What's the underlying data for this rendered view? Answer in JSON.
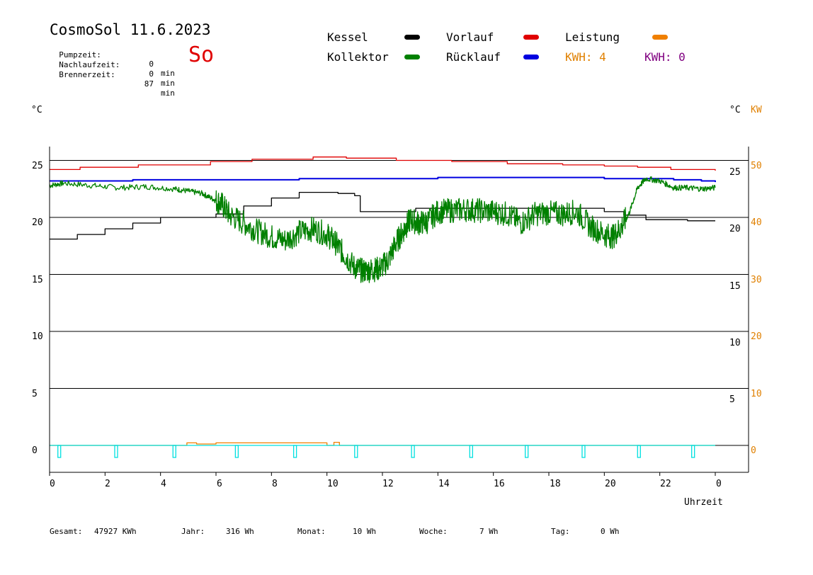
{
  "header": {
    "title": "CosmoSol 11.6.2023",
    "day": "So",
    "info": [
      {
        "label": "Pumpzeit:",
        "value": "0",
        "unit": "min"
      },
      {
        "label": "Nachlaufzeit:",
        "value": "0",
        "unit": "min"
      },
      {
        "label": "Brennerzeit:",
        "value": "87",
        "unit": "min"
      }
    ]
  },
  "legend": {
    "kessel": "Kessel",
    "kollektor": "Kollektor",
    "vorlauf": "Vorlauf",
    "ruecklauf": "Rücklauf",
    "leistung": "Leistung",
    "kwh_orange": "KWH: 4",
    "kwh_purple": "KWH: 0"
  },
  "colors": {
    "kessel": "#000000",
    "kollektor": "#008000",
    "vorlauf": "#e00000",
    "ruecklauf": "#0000e0",
    "leistung": "#f08000",
    "pumpe": "#00e0e0",
    "purple": "#800080",
    "kw_axis": "#e08000"
  },
  "axes": {
    "left_unit": "°C",
    "right_unit": "°C",
    "right_unit2": "KW",
    "xlabel": "Uhrzeit",
    "left_ticks": [
      "25",
      "20",
      "15",
      "10",
      "5",
      "0"
    ],
    "right_ticks_c": [
      "25",
      "20",
      "15",
      "10",
      "5"
    ],
    "right_ticks_kw": [
      "50",
      "40",
      "30",
      "20",
      "10",
      "0"
    ],
    "x_ticks": [
      "0",
      "2",
      "4",
      "6",
      "8",
      "10",
      "12",
      "14",
      "16",
      "18",
      "20",
      "22",
      "0"
    ]
  },
  "footer": {
    "gesamt_label": "Gesamt:",
    "gesamt_value": "47927 KWh",
    "jahr_label": "Jahr:",
    "jahr_value": "316 Wh",
    "monat_label": "Monat:",
    "monat_value": "10 Wh",
    "woche_label": "Woche:",
    "woche_value": "7 Wh",
    "tag_label": "Tag:",
    "tag_value": "0 Wh"
  },
  "chart_data": {
    "type": "line",
    "x_unit": "h",
    "xlim": [
      0,
      24
    ],
    "ylim_left": [
      -2,
      26
    ],
    "ylim_right_kw": [
      -4,
      52
    ],
    "grid_y": [
      25,
      20,
      15,
      10,
      5,
      0
    ],
    "series": [
      {
        "name": "Vorlauf",
        "key": "vorlauf",
        "x": [
          0,
          1.1,
          3.2,
          5.8,
          7.3,
          9.5,
          10.7,
          12.5,
          14.5,
          16.5,
          18.5,
          20.0,
          21.2,
          22.4,
          24.0
        ],
        "y": [
          24.2,
          24.4,
          24.6,
          24.9,
          25.1,
          25.3,
          25.2,
          25.0,
          24.9,
          24.7,
          24.6,
          24.5,
          24.4,
          24.2,
          24.1
        ]
      },
      {
        "name": "Rücklauf",
        "key": "ruecklauf",
        "x": [
          0,
          3.0,
          6.0,
          9.0,
          12.0,
          14.0,
          16.0,
          18.0,
          20.0,
          21.5,
          22.5,
          23.5,
          24.0
        ],
        "y": [
          23.2,
          23.3,
          23.3,
          23.4,
          23.4,
          23.5,
          23.5,
          23.5,
          23.4,
          23.4,
          23.3,
          23.2,
          23.1
        ]
      },
      {
        "name": "Kessel",
        "key": "kessel",
        "x": [
          0,
          1.0,
          2.0,
          3.0,
          4.0,
          5.0,
          5.5,
          6.0,
          7.0,
          8.0,
          9.0,
          10.0,
          10.4,
          11.0,
          11.2,
          12.7,
          13.2,
          14.0,
          17.0,
          20.0,
          20.7,
          21.5,
          22.2,
          23.0,
          24.0
        ],
        "y": [
          18.1,
          18.5,
          19.0,
          19.5,
          20.0,
          20.0,
          20.0,
          20.3,
          21.0,
          21.7,
          22.2,
          22.2,
          22.1,
          21.9,
          20.5,
          20.5,
          20.8,
          20.8,
          20.8,
          20.5,
          20.2,
          19.8,
          19.8,
          19.7,
          19.7
        ]
      },
      {
        "name": "Kollektor",
        "key": "kollektor",
        "x": [
          0,
          0.5,
          1.5,
          2.5,
          3.5,
          4.5,
          5.0,
          5.5,
          5.9,
          6.2,
          6.5,
          7.0,
          7.5,
          8.0,
          8.5,
          9.0,
          9.5,
          10.0,
          10.3,
          10.6,
          11.0,
          11.3,
          11.6,
          11.9,
          12.2,
          12.5,
          12.8,
          13.0,
          13.3,
          13.6,
          14.0,
          14.5,
          15.0,
          15.5,
          16.0,
          16.5,
          17.0,
          17.5,
          18.0,
          18.5,
          19.0,
          19.5,
          20.0,
          20.3,
          20.6,
          20.9,
          21.2,
          21.5,
          22.0,
          22.5,
          23.0,
          23.5,
          24.0
        ],
        "y": [
          22.8,
          23.0,
          22.8,
          22.6,
          22.7,
          22.5,
          22.3,
          22.1,
          21.6,
          21.2,
          20.2,
          19.5,
          18.8,
          18.3,
          18.0,
          18.7,
          19.0,
          18.5,
          17.8,
          16.8,
          15.6,
          15.3,
          15.4,
          15.5,
          16.2,
          17.8,
          19.0,
          19.8,
          19.5,
          19.6,
          20.5,
          20.6,
          20.7,
          20.6,
          20.5,
          20.3,
          19.5,
          20.3,
          20.4,
          20.3,
          20.5,
          19.2,
          18.5,
          18.3,
          19.1,
          20.4,
          22.6,
          23.4,
          23.2,
          22.6,
          22.6,
          22.5,
          22.6
        ]
      },
      {
        "name": "Leistung",
        "key": "leistung",
        "x": [
          0,
          4.95,
          4.95,
          5.3,
          5.3,
          6.0,
          6.0,
          10.0,
          10.0,
          10.25,
          10.25,
          10.45,
          10.45,
          24.0
        ],
        "y": [
          0,
          0,
          0.45,
          0.45,
          0.25,
          0.25,
          0.45,
          0.45,
          0,
          0,
          0.55,
          0.55,
          0,
          0
        ]
      }
    ],
    "pump_pulses_x": [
      0.35,
      2.4,
      4.5,
      6.75,
      8.85,
      11.05,
      13.1,
      15.2,
      17.2,
      19.25,
      21.25,
      23.2
    ]
  }
}
